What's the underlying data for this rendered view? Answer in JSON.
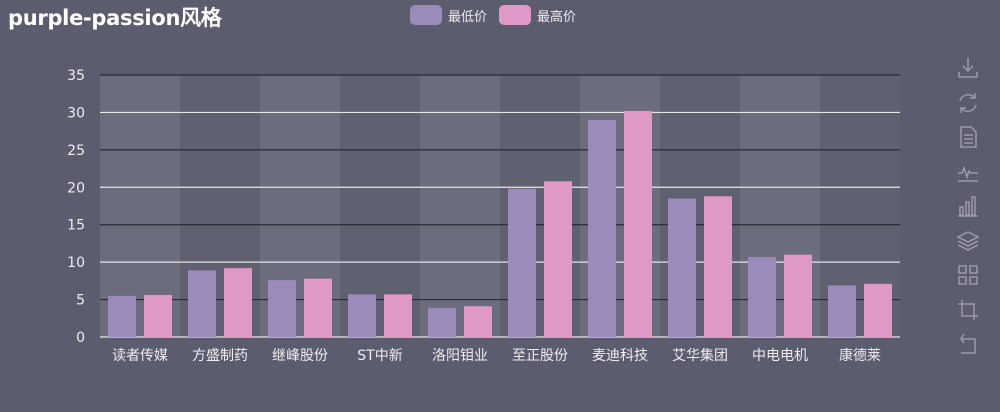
{
  "title": "purple-passion风格",
  "colors": {
    "background": "#5b5c6e",
    "series_min": "#9b8bba",
    "series_max": "#e098c7",
    "grid_dark": "#2a2a33",
    "grid_light": "#e6e6e6",
    "band_light": "#6b6c7c",
    "band_dark": "#5f6070",
    "tick_text": "#eeeeee",
    "tool_icon": "#9a9aa8"
  },
  "chart_data": {
    "type": "bar",
    "title": "purple-passion风格",
    "categories": [
      "读者传媒",
      "方盛制药",
      "继峰股份",
      "ST中新",
      "洛阳钼业",
      "至正股份",
      "麦迪科技",
      "艾华集团",
      "中电电机",
      "康德莱"
    ],
    "series": [
      {
        "name": "最低价",
        "values": [
          5.5,
          8.9,
          7.6,
          5.7,
          3.9,
          19.8,
          29.0,
          18.5,
          10.7,
          6.9
        ]
      },
      {
        "name": "最高价",
        "values": [
          5.6,
          9.2,
          7.8,
          5.7,
          4.1,
          20.8,
          30.2,
          18.8,
          11.0,
          7.1
        ]
      }
    ],
    "ylim": [
      0,
      35
    ],
    "yticks": [
      0,
      5,
      10,
      15,
      20,
      25,
      30,
      35
    ],
    "grid": true,
    "legend_position": "top-center"
  },
  "legend": [
    {
      "label": "最低价"
    },
    {
      "label": "最高价"
    }
  ],
  "toolbox": [
    {
      "name": "save-as-image-icon"
    },
    {
      "name": "restore-icon"
    },
    {
      "name": "data-view-icon"
    },
    {
      "name": "line-chart-icon"
    },
    {
      "name": "bar-chart-icon"
    },
    {
      "name": "stack-icon"
    },
    {
      "name": "tiled-icon"
    },
    {
      "name": "zoom-icon"
    },
    {
      "name": "zoom-reset-icon"
    }
  ]
}
